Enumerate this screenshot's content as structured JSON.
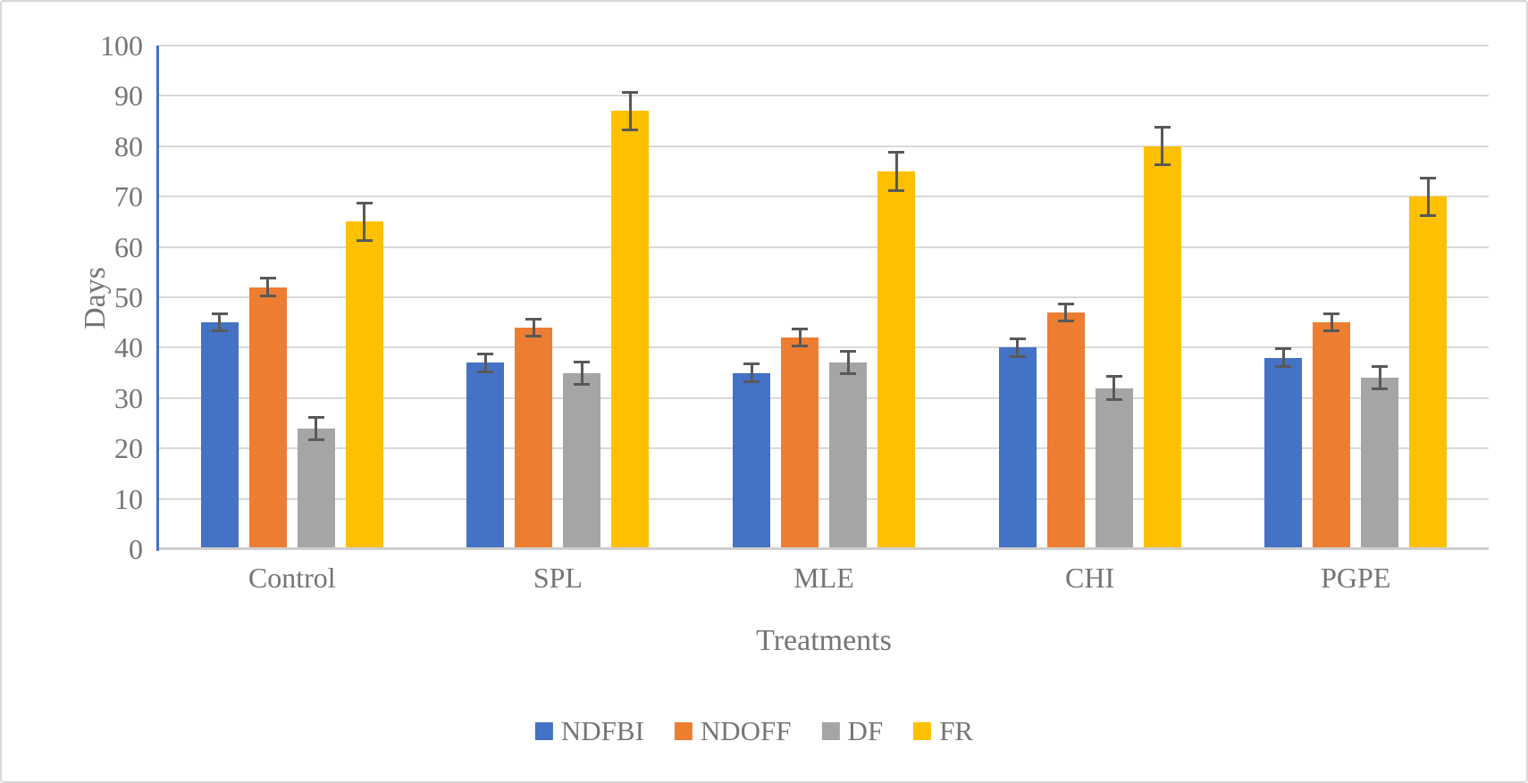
{
  "figure": {
    "background": "#FFFFFF",
    "border_color": "#D9D9D9"
  },
  "chart_data": {
    "type": "bar",
    "title": "",
    "categories": [
      "Control",
      "SPL",
      "MLE",
      "CHI",
      "PGPE"
    ],
    "series": [
      {
        "name": "NDFBI",
        "color": "#4472C4",
        "values": [
          45,
          37,
          35,
          40,
          38
        ],
        "errors": [
          2,
          2,
          2,
          2,
          2
        ]
      },
      {
        "name": "NDOFF",
        "color": "#ED7D31",
        "values": [
          52,
          44,
          42,
          47,
          45
        ],
        "errors": [
          2,
          2,
          2,
          2,
          2
        ]
      },
      {
        "name": "DF",
        "color": "#A5A5A5",
        "values": [
          24,
          35,
          37,
          32,
          34
        ],
        "errors": [
          2.5,
          2.5,
          2.5,
          2.5,
          2.5
        ]
      },
      {
        "name": "FR",
        "color": "#FFC000",
        "values": [
          65,
          87,
          75,
          80,
          70
        ],
        "errors": [
          4,
          4,
          4,
          4,
          4
        ]
      }
    ],
    "xlabel": "Treatments",
    "ylabel": "Days",
    "ylim": [
      0,
      100
    ],
    "ytick_step": 10,
    "ytick_labels": [
      "0",
      "10",
      "20",
      "30",
      "40",
      "50",
      "60",
      "70",
      "80",
      "90",
      "100"
    ],
    "grid": true,
    "legend_position": "bottom",
    "axis_line_color": "#4472C4",
    "gridline_color": "#D9D9D9",
    "baseline_color": "#CFCDCD",
    "error_bar_color": "#595959",
    "text_color": "#757575"
  }
}
